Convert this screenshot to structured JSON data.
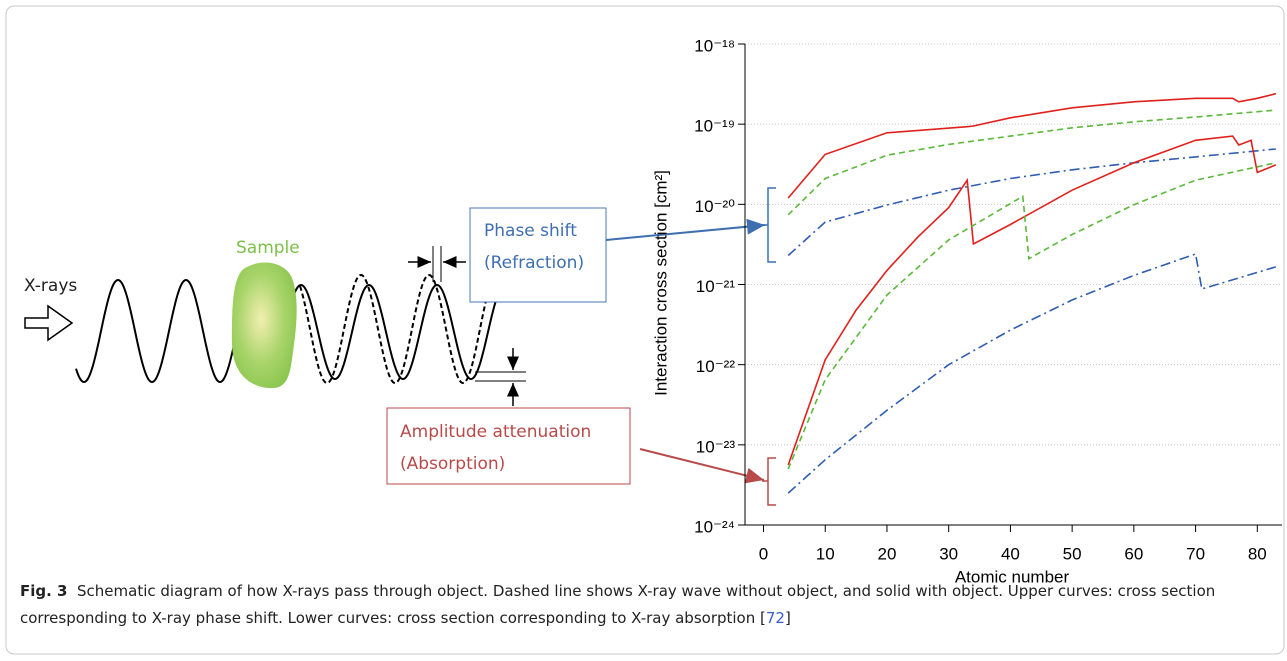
{
  "diagram": {
    "xray_label": "X-rays",
    "sample_label": "Sample",
    "phase_box": {
      "title": "Phase shift",
      "subtitle": "(Refraction)"
    },
    "amplitude_box": {
      "title": "Amplitude attenuation",
      "subtitle": "(Absorption)"
    }
  },
  "chart_data": {
    "type": "line",
    "y_label": "Interaction cross section [cm²]",
    "x_label": "Atomic number",
    "log_y": true,
    "grid": true,
    "xlim": [
      -3,
      84
    ],
    "xticks": [
      0,
      10,
      20,
      30,
      40,
      50,
      60,
      70,
      80
    ],
    "ylim": [
      1e-24,
      1e-18
    ],
    "yticks": [
      {
        "value": 1e-24,
        "label": "10⁻²⁴"
      },
      {
        "value": 1e-23,
        "label": "10⁻²³"
      },
      {
        "value": 1e-22,
        "label": "10⁻²²"
      },
      {
        "value": 1e-21,
        "label": "10⁻²¹"
      },
      {
        "value": 1e-20,
        "label": "10⁻²⁰"
      },
      {
        "value": 1e-19,
        "label": "10⁻¹⁹"
      },
      {
        "value": 1e-18,
        "label": "10⁻¹⁸"
      }
    ],
    "series": [
      {
        "color": "#e0201b",
        "line_style": "solid",
        "x": [
          4,
          10,
          20,
          33,
          34,
          40,
          50,
          60,
          70,
          76,
          77,
          80,
          83
        ],
        "values": [
          1.2e-20,
          4.2e-20,
          7.8e-20,
          9.3e-20,
          9.5e-20,
          1.2e-19,
          1.6e-19,
          1.9e-19,
          2.1e-19,
          2.1e-19,
          1.9e-19,
          2.1e-19,
          2.4e-19
        ]
      },
      {
        "color": "#5ab83a",
        "line_style": "dashed",
        "x": [
          4,
          10,
          20,
          30,
          40,
          50,
          60,
          70,
          83
        ],
        "values": [
          7.4e-21,
          2.1e-20,
          4.1e-20,
          5.6e-20,
          7.1e-20,
          9e-20,
          1.07e-19,
          1.23e-19,
          1.5e-19
        ]
      },
      {
        "color": "#2f5db0",
        "line_style": "dashdot",
        "x": [
          4,
          10,
          20,
          30,
          40,
          50,
          60,
          70,
          83
        ],
        "values": [
          2.3e-21,
          6e-21,
          9.8e-21,
          1.5e-20,
          2.1e-20,
          2.7e-20,
          3.3e-20,
          3.9e-20,
          4.9e-20
        ]
      },
      {
        "color": "#e0201b",
        "line_style": "solid",
        "x": [
          4,
          10,
          15,
          20,
          25,
          30,
          33,
          34,
          40,
          50,
          60,
          70,
          76,
          77,
          79,
          80,
          83
        ],
        "values": [
          5.6e-24,
          1.15e-22,
          4.8e-22,
          1.5e-21,
          3.9e-21,
          9.1e-21,
          2e-20,
          3.2e-21,
          5.6e-21,
          1.5e-20,
          3.3e-20,
          6.3e-20,
          7.1e-20,
          5.5e-20,
          6.3e-20,
          2.5e-20,
          3.1e-20
        ]
      },
      {
        "color": "#5ab83a",
        "line_style": "dashed",
        "x": [
          4,
          10,
          20,
          30,
          42,
          43,
          50,
          60,
          70,
          83
        ],
        "values": [
          5e-24,
          6.5e-23,
          7.4e-22,
          3.6e-21,
          1.26e-20,
          2.1e-21,
          4.2e-21,
          9.9e-21,
          2e-20,
          3.3e-20
        ]
      },
      {
        "color": "#2f5db0",
        "line_style": "dashdot",
        "x": [
          4,
          10,
          20,
          30,
          40,
          50,
          60,
          70,
          71,
          83
        ],
        "values": [
          2.5e-24,
          6.5e-24,
          2.7e-23,
          1e-22,
          2.7e-22,
          6.4e-22,
          1.3e-21,
          2.4e-21,
          8.8e-22,
          1.66e-21
        ]
      }
    ]
  },
  "caption": {
    "label": "Fig. 3",
    "text": "Schematic diagram of how X-rays pass through object. Dashed line shows X-ray wave without object, and solid with object. Upper curves: cross section corresponding to X-ray phase shift. Lower curves: cross section corresponding to X-ray absorption [",
    "reference": "72",
    "text_end": "]"
  }
}
